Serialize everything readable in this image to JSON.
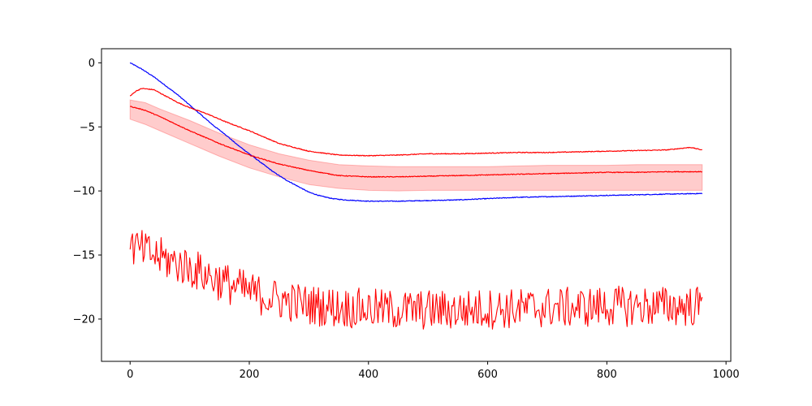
{
  "chart_data": {
    "type": "line",
    "title": "",
    "xlabel": "",
    "ylabel": "",
    "xlim": [
      -48,
      1008
    ],
    "ylim": [
      -23.3,
      1.1
    ],
    "grid": false,
    "x_ticks": [
      0,
      200,
      400,
      600,
      800,
      1000
    ],
    "y_ticks": [
      0,
      -5,
      -10,
      -15,
      -20
    ],
    "x_tick_labels": [
      "0",
      "200",
      "400",
      "600",
      "800",
      "1000"
    ],
    "y_tick_labels": [
      "0",
      "−5",
      "−10",
      "−15",
      "−20"
    ],
    "colors": {
      "blue": "#0000ff",
      "red": "#ff0000",
      "band": "#ff0000"
    },
    "series": [
      {
        "color": "#0000ff",
        "style": "line",
        "x": [
          0,
          20,
          40,
          60,
          80,
          100,
          120,
          140,
          160,
          180,
          200,
          220,
          240,
          260,
          280,
          300,
          320,
          340,
          360,
          380,
          400,
          450,
          500,
          550,
          600,
          650,
          700,
          750,
          800,
          850,
          900,
          960
        ],
        "y": [
          0.0,
          -0.5,
          -1.1,
          -1.8,
          -2.5,
          -3.3,
          -4.1,
          -4.9,
          -5.6,
          -6.4,
          -7.1,
          -7.8,
          -8.5,
          -9.1,
          -9.6,
          -10.1,
          -10.4,
          -10.6,
          -10.7,
          -10.75,
          -10.8,
          -10.8,
          -10.75,
          -10.7,
          -10.6,
          -10.5,
          -10.45,
          -10.4,
          -10.35,
          -10.3,
          -10.25,
          -10.2
        ]
      },
      {
        "color": "#ff0000",
        "style": "line",
        "x": [
          0,
          10,
          20,
          40,
          60,
          80,
          100,
          130,
          160,
          200,
          250,
          300,
          350,
          400,
          450,
          500,
          550,
          600,
          650,
          700,
          750,
          800,
          850,
          900,
          940,
          960
        ],
        "y": [
          -2.6,
          -2.2,
          -2.0,
          -2.1,
          -2.6,
          -3.1,
          -3.5,
          -4.0,
          -4.6,
          -5.3,
          -6.3,
          -6.9,
          -7.2,
          -7.25,
          -7.2,
          -7.1,
          -7.1,
          -7.05,
          -7.0,
          -7.0,
          -6.95,
          -6.9,
          -6.85,
          -6.8,
          -6.6,
          -6.8
        ]
      },
      {
        "color": "#ff0000",
        "style": "line",
        "x": [
          0,
          25,
          50,
          100,
          150,
          200,
          250,
          300,
          350,
          400,
          450,
          500,
          550,
          600,
          650,
          700,
          750,
          800,
          850,
          900,
          960
        ],
        "y": [
          -3.4,
          -3.7,
          -4.2,
          -5.3,
          -6.3,
          -7.2,
          -7.9,
          -8.4,
          -8.8,
          -8.9,
          -8.9,
          -8.85,
          -8.8,
          -8.75,
          -8.7,
          -8.65,
          -8.6,
          -8.55,
          -8.55,
          -8.5,
          -8.5
        ]
      },
      {
        "color": "#ff0000",
        "style": "noisy",
        "x": [
          0,
          50,
          100,
          150,
          200,
          250,
          300,
          350,
          400,
          450,
          500,
          550,
          600,
          650,
          700,
          750,
          800,
          850,
          900,
          960
        ],
        "y": [
          -14.3,
          -15.2,
          -16.0,
          -17.0,
          -17.9,
          -18.5,
          -18.9,
          -19.1,
          -19.2,
          -19.3,
          -19.3,
          -19.3,
          -19.2,
          -19.2,
          -19.1,
          -19.1,
          -19.0,
          -19.0,
          -19.0,
          -19.0
        ]
      }
    ],
    "band": {
      "color": "#ff0000",
      "x": [
        0,
        25,
        50,
        100,
        150,
        200,
        250,
        300,
        350,
        400,
        450,
        500,
        550,
        600,
        650,
        700,
        750,
        800,
        850,
        900,
        960
      ],
      "upper": [
        -2.9,
        -3.1,
        -3.6,
        -4.5,
        -5.5,
        -6.4,
        -7.1,
        -7.6,
        -7.95,
        -8.05,
        -8.1,
        -8.1,
        -8.1,
        -8.1,
        -8.05,
        -8.0,
        -8.0,
        -8.0,
        -7.95,
        -7.95,
        -7.95
      ],
      "lower": [
        -4.4,
        -4.8,
        -5.3,
        -6.3,
        -7.3,
        -8.2,
        -8.9,
        -9.5,
        -9.8,
        -9.95,
        -10.0,
        -9.95,
        -9.95,
        -9.95,
        -9.95,
        -9.95,
        -9.95,
        -9.95,
        -9.95,
        -9.95,
        -9.95
      ]
    }
  }
}
